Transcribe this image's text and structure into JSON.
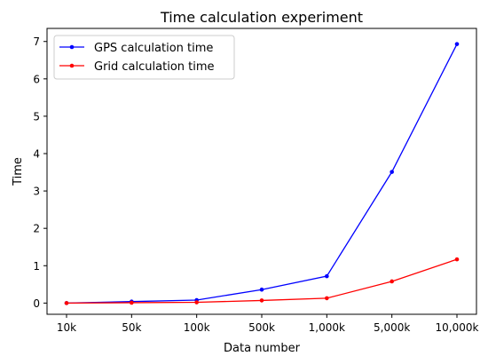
{
  "chart_data": {
    "type": "line",
    "title": "Time calculation experiment",
    "xlabel": "Data number",
    "ylabel": "Time",
    "categories": [
      "10k",
      "50k",
      "100k",
      "500k",
      "1,000k",
      "5,000k",
      "10,000k"
    ],
    "ylim": [
      -0.3,
      7.35
    ],
    "yticks": [
      0,
      1,
      2,
      3,
      4,
      5,
      6,
      7
    ],
    "grid": false,
    "legend_position": "top-left",
    "series": [
      {
        "name": "GPS calculation time",
        "color": "#0000ff",
        "values": [
          0.0,
          0.04,
          0.08,
          0.36,
          0.72,
          3.51,
          6.93
        ]
      },
      {
        "name": "Grid calculation time",
        "color": "#ff0000",
        "values": [
          0.0,
          0.01,
          0.02,
          0.07,
          0.13,
          0.58,
          1.17
        ]
      }
    ]
  }
}
